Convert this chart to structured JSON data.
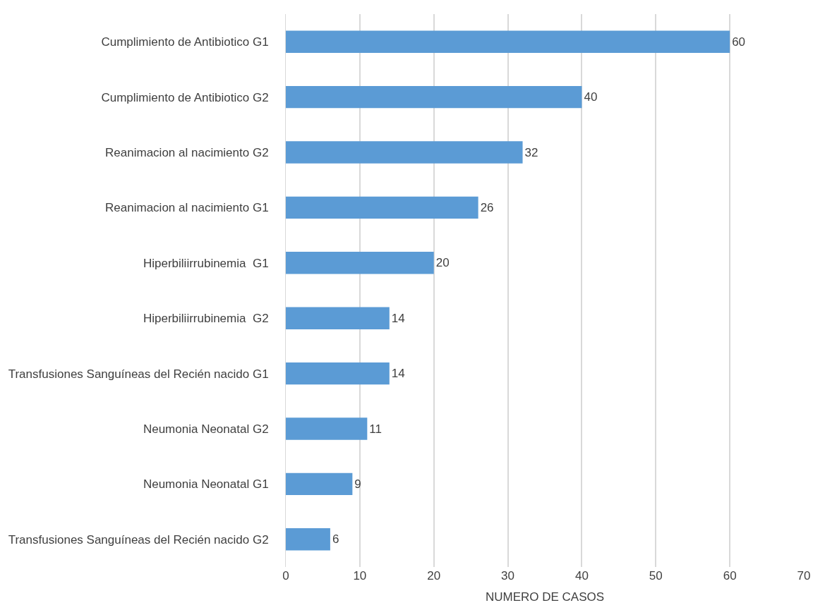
{
  "chart_data": {
    "type": "bar",
    "orientation": "horizontal",
    "xlabel": "NUMERO DE CASOS",
    "categories": [
      "Cumplimiento de Antibiotico G1",
      "Cumplimiento de Antibiotico G2",
      "Reanimacion al nacimiento G2",
      "Reanimacion al nacimiento G1",
      "Hiperbiliirrubinemia  G1",
      "Hiperbiliirrubinemia  G2",
      "Transfusiones Sanguíneas del Recién nacido G1",
      "Neumonia Neonatal G2",
      "Neumonia Neonatal G1",
      "Transfusiones Sanguíneas del Recién nacido G2"
    ],
    "values": [
      60,
      40,
      32,
      26,
      20,
      14,
      14,
      11,
      9,
      6
    ],
    "color": "#5b9bd5",
    "xlim": [
      0,
      70
    ],
    "xticks": [
      0,
      10,
      20,
      30,
      40,
      50,
      60,
      70
    ],
    "grid": "x",
    "data_labels": true
  }
}
